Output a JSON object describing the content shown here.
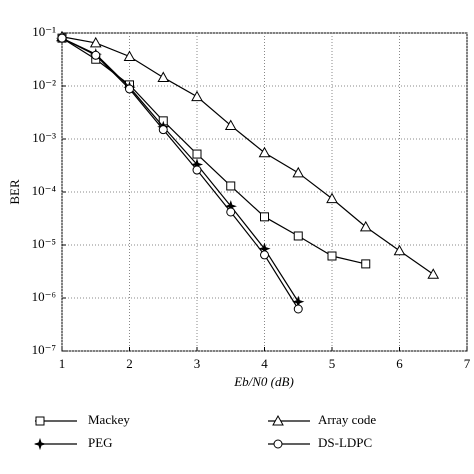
{
  "chart_data": {
    "type": "line",
    "x_label": "Eb/N0 (dB)",
    "y_label": "BER",
    "xlim": [
      1,
      7
    ],
    "xticks": [
      1,
      2,
      3,
      4,
      5,
      6,
      7
    ],
    "ylim": [
      1e-07,
      0.1
    ],
    "y_scale": "log",
    "yticks": [
      {
        "value": 1e-07,
        "label": "10⁻⁷"
      },
      {
        "value": 1e-06,
        "label": "10⁻⁶"
      },
      {
        "value": 1e-05,
        "label": "10⁻⁵"
      },
      {
        "value": 0.0001,
        "label": "10⁻⁴"
      },
      {
        "value": 0.001,
        "label": "10⁻³"
      },
      {
        "value": 0.01,
        "label": "10⁻²"
      },
      {
        "value": 0.1,
        "label": "10⁻¹"
      }
    ],
    "grid": true,
    "series": [
      {
        "name": "Mackey",
        "color": "#000000",
        "marker": "square",
        "x": [
          1,
          1.5,
          2,
          2.5,
          3,
          3.5,
          4,
          4.5,
          5,
          5.5
        ],
        "values": [
          0.08,
          0.032,
          0.0105,
          0.0022,
          0.00052,
          0.00013,
          3.4e-05,
          1.48e-05,
          6.2e-06,
          4.4e-06
        ]
      },
      {
        "name": "PEG",
        "color": "#000000",
        "marker": "star",
        "x": [
          1,
          1.5,
          2,
          2.5,
          3,
          3.5,
          4,
          4.5
        ],
        "values": [
          0.08,
          0.04,
          0.0095,
          0.0017,
          0.00033,
          5.4e-05,
          8.5e-06,
          8.5e-07
        ]
      },
      {
        "name": "Array code",
        "color": "#000000",
        "marker": "triangle",
        "x": [
          1,
          1.5,
          2,
          2.5,
          3,
          3.5,
          4,
          4.5,
          5,
          5.5,
          6,
          6.5
        ],
        "values": [
          0.085,
          0.065,
          0.036,
          0.0145,
          0.0063,
          0.0018,
          0.00055,
          0.00023,
          7.5e-05,
          2.2e-05,
          7.8e-06,
          2.8e-06
        ]
      },
      {
        "name": "DS-LDPC",
        "color": "#000000",
        "marker": "circle",
        "x": [
          1,
          1.5,
          2,
          2.5,
          3,
          3.5,
          4,
          4.5
        ],
        "values": [
          0.08,
          0.038,
          0.0088,
          0.0015,
          0.00026,
          4.2e-05,
          6.5e-06,
          6.2e-07
        ]
      }
    ]
  }
}
